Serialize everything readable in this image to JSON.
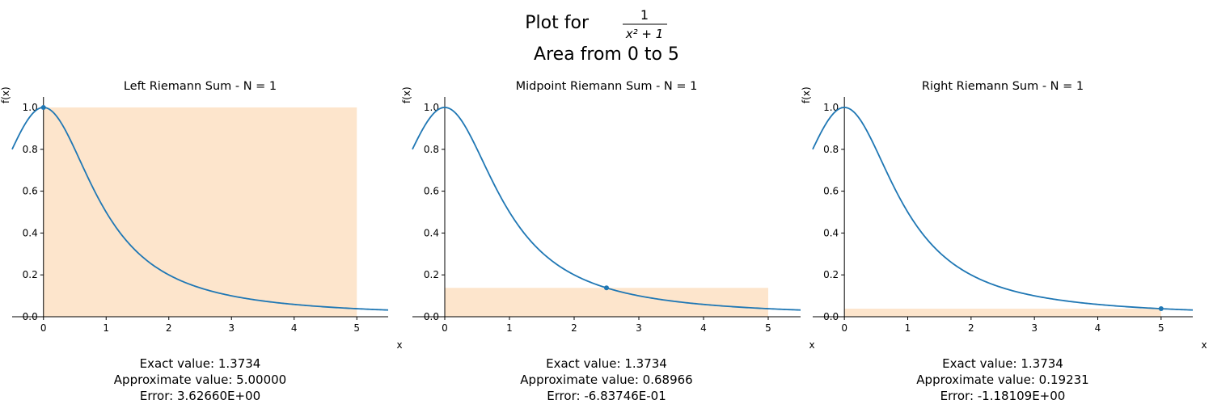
{
  "figure": {
    "title_prefix": "Plot for",
    "title_numerator": "1",
    "title_denominator": "x² + 1",
    "title_line2": "Area from 0 to 5"
  },
  "colors": {
    "curve": "#1f77b4",
    "rect_fill": "#fde5cc",
    "point": "#1f77b4"
  },
  "chart_data": [
    {
      "type": "line",
      "title": "Left Riemann Sum - N = 1",
      "xlabel": "x",
      "ylabel": "f(x)",
      "xlim": [
        -0.5,
        5.5
      ],
      "ylim": [
        0,
        1.05
      ],
      "xticks": [
        "0",
        "1",
        "2",
        "3",
        "4",
        "5"
      ],
      "yticks": [
        "0.0",
        "0.2",
        "0.4",
        "0.6",
        "0.8",
        "1.0"
      ],
      "function": "1/(x^2+1)",
      "rectangles": [
        {
          "x0": 0,
          "x1": 5,
          "height": 1.0
        }
      ],
      "sample_points": [
        {
          "x": 0,
          "y": 1.0
        }
      ],
      "annotation": [
        "Exact value: 1.3734",
        "Approximate value: 5.00000",
        "Error: 3.62660E+00"
      ]
    },
    {
      "type": "line",
      "title": "Midpoint Riemann Sum - N = 1",
      "xlabel": "x",
      "ylabel": "f(x)",
      "xlim": [
        -0.5,
        5.5
      ],
      "ylim": [
        0,
        1.05
      ],
      "xticks": [
        "0",
        "1",
        "2",
        "3",
        "4",
        "5"
      ],
      "yticks": [
        "0.0",
        "0.2",
        "0.4",
        "0.6",
        "0.8",
        "1.0"
      ],
      "function": "1/(x^2+1)",
      "rectangles": [
        {
          "x0": 0,
          "x1": 5,
          "height": 0.13793
        }
      ],
      "sample_points": [
        {
          "x": 2.5,
          "y": 0.13793
        }
      ],
      "annotation": [
        "Exact value: 1.3734",
        "Approximate value: 0.68966",
        "Error: -6.83746E-01"
      ]
    },
    {
      "type": "line",
      "title": "Right Riemann Sum - N = 1",
      "xlabel": "x",
      "ylabel": "f(x)",
      "xlim": [
        -0.5,
        5.5
      ],
      "ylim": [
        0,
        1.05
      ],
      "xticks": [
        "0",
        "1",
        "2",
        "3",
        "4",
        "5"
      ],
      "yticks": [
        "0.0",
        "0.2",
        "0.4",
        "0.6",
        "0.8",
        "1.0"
      ],
      "function": "1/(x^2+1)",
      "rectangles": [
        {
          "x0": 0,
          "x1": 5,
          "height": 0.03846
        }
      ],
      "sample_points": [
        {
          "x": 5,
          "y": 0.03846
        }
      ],
      "annotation": [
        "Exact value: 1.3734",
        "Approximate value: 0.19231",
        "Error: -1.18109E+00"
      ]
    }
  ]
}
